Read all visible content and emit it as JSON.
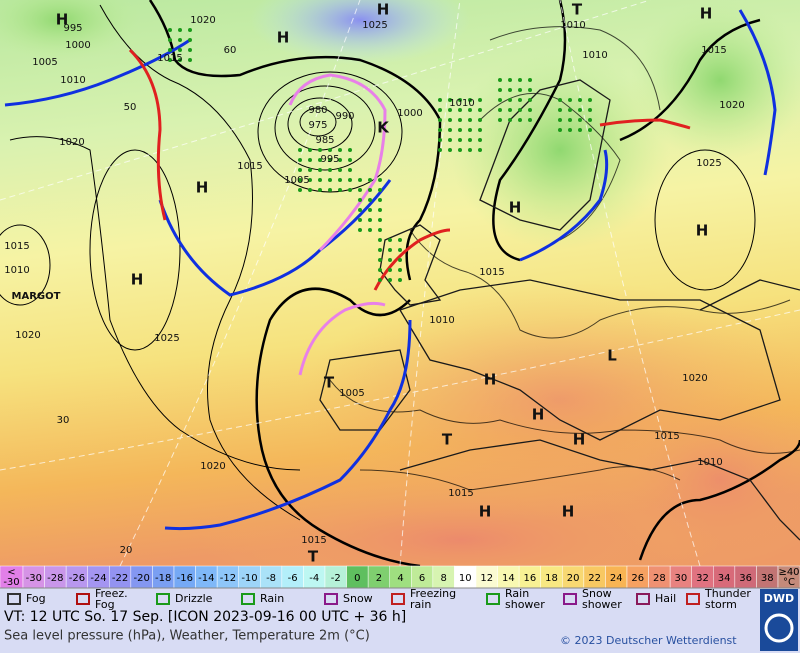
{
  "map": {
    "labels": [
      "H",
      "H",
      "1025",
      "1020",
      "1015",
      "995",
      "1000",
      "1005",
      "1010",
      "1020",
      "1015",
      "H",
      "980",
      "975",
      "990",
      "985",
      "995",
      "1005",
      "1000",
      "1010",
      "1010",
      "1010",
      "T",
      "H",
      "1015",
      "1020",
      "1025",
      "H",
      "H",
      "1015",
      "H",
      "1015",
      "1010",
      "1020",
      "1025",
      "1020",
      "MARGOT",
      "1010",
      "H",
      "T",
      "1005",
      "T",
      "H",
      "H",
      "1020",
      "1015",
      "1010",
      "1015",
      "H",
      "H",
      "1015",
      "T",
      "H",
      "K",
      "L",
      "50",
      "60",
      "30",
      "20"
    ]
  },
  "scale": {
    "items": [
      {
        "prefix": "<",
        "label": "-30",
        "color": "#e27fe8"
      },
      {
        "label": "-30",
        "color": "#d693e6"
      },
      {
        "label": "-28",
        "color": "#c996ea"
      },
      {
        "label": "-26",
        "color": "#b897ef"
      },
      {
        "label": "-24",
        "color": "#a495f1"
      },
      {
        "label": "-22",
        "color": "#9393f1"
      },
      {
        "label": "-20",
        "color": "#8497f1"
      },
      {
        "label": "-18",
        "color": "#7a9ff2"
      },
      {
        "label": "-16",
        "color": "#75a9f5"
      },
      {
        "label": "-14",
        "color": "#7fb8f8"
      },
      {
        "label": "-12",
        "color": "#8ec6f9"
      },
      {
        "label": "-10",
        "color": "#9dd4f9"
      },
      {
        "label": "-8",
        "color": "#aae2f8"
      },
      {
        "label": "-6",
        "color": "#b3effa"
      },
      {
        "label": "-4",
        "color": "#bdf7f2"
      },
      {
        "label": "-2",
        "color": "#b6f1d8"
      },
      {
        "label": "0",
        "color": "#5fbf5f"
      },
      {
        "label": "2",
        "color": "#7fcf6f"
      },
      {
        "label": "4",
        "color": "#9fdf80"
      },
      {
        "label": "6",
        "color": "#bfeb98"
      },
      {
        "label": "8",
        "color": "#d7f4b1"
      },
      {
        "label": "10",
        "color": "#ffffff"
      },
      {
        "label": "12",
        "color": "#fbfbd2"
      },
      {
        "label": "14",
        "color": "#f8f8b2"
      },
      {
        "label": "16",
        "color": "#f8f194"
      },
      {
        "label": "18",
        "color": "#f8e882"
      },
      {
        "label": "20",
        "color": "#f8d872"
      },
      {
        "label": "22",
        "color": "#f8c862"
      },
      {
        "label": "24",
        "color": "#f8b453"
      },
      {
        "label": "26",
        "color": "#f6a161"
      },
      {
        "label": "28",
        "color": "#ef9172"
      },
      {
        "label": "30",
        "color": "#e88280"
      },
      {
        "label": "32",
        "color": "#e07280"
      },
      {
        "label": "34",
        "color": "#d86a79"
      },
      {
        "label": "36",
        "color": "#cf6a78"
      },
      {
        "label": "38",
        "color": "#c27473"
      },
      {
        "prefix": "≥40",
        "label": "°C",
        "color": "#c48a7a"
      }
    ]
  },
  "legend": {
    "items": [
      "Fog",
      "Freez. Fog",
      "Drizzle",
      "Rain",
      "Snow",
      "Freezing rain",
      "Rain shower",
      "Snow shower",
      "Hail",
      "Thunder storm"
    ]
  },
  "footer": {
    "valid_time": "VT: 12 UTC So.  17 Sep. [ICON 2023-09-16  00 UTC + 36 h]",
    "description": "Sea level pressure (hPa), Weather, Temperature 2m (°C)",
    "copyright": "© 2023 Deutscher Wetterdienst",
    "logo": "DWD"
  }
}
